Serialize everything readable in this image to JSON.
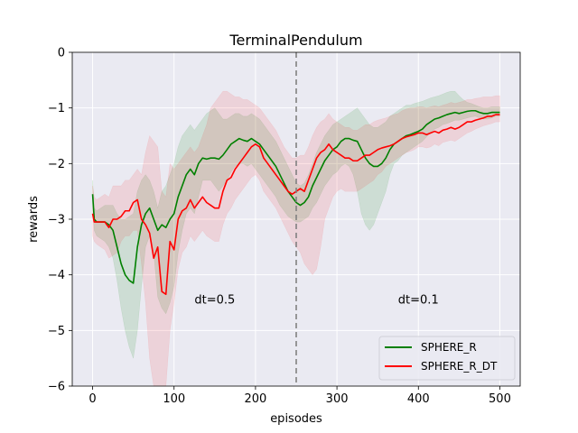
{
  "chart_data": {
    "type": "line",
    "title": "TerminalPendulum",
    "xlabel": "episodes",
    "ylabel": "rewards",
    "xlim": [
      -25,
      525
    ],
    "ylim": [
      -6,
      0
    ],
    "xticks": [
      0,
      100,
      200,
      300,
      400,
      500
    ],
    "yticks": [
      0,
      -1,
      -2,
      -3,
      -4,
      -5,
      -6
    ],
    "grid": true,
    "legend_position": "lower-right",
    "vline": {
      "x": 250,
      "color": "#808080",
      "style": "dashed"
    },
    "annotations": [
      {
        "text": "dt=0.5",
        "x": 150,
        "y": -4.45
      },
      {
        "text": "dt=0.1",
        "x": 400,
        "y": -4.45
      }
    ],
    "series": [
      {
        "name": "SPHERE_R",
        "color": "#008000",
        "band_color": "rgba(0,128,0,0.12)",
        "x": [
          0,
          2,
          5,
          10,
          15,
          20,
          25,
          30,
          35,
          40,
          45,
          50,
          55,
          60,
          65,
          70,
          75,
          80,
          85,
          90,
          95,
          100,
          105,
          110,
          115,
          120,
          125,
          130,
          135,
          140,
          145,
          150,
          155,
          160,
          165,
          170,
          175,
          180,
          185,
          190,
          195,
          200,
          205,
          210,
          215,
          220,
          225,
          230,
          235,
          240,
          245,
          250,
          255,
          260,
          265,
          270,
          275,
          280,
          285,
          290,
          295,
          300,
          305,
          310,
          315,
          320,
          325,
          330,
          335,
          340,
          345,
          350,
          355,
          360,
          365,
          370,
          375,
          380,
          385,
          390,
          395,
          400,
          405,
          410,
          415,
          420,
          425,
          430,
          435,
          440,
          445,
          450,
          455,
          460,
          465,
          470,
          475,
          480,
          485,
          490,
          495,
          500
        ],
        "y": [
          -2.55,
          -3.0,
          -3.05,
          -3.05,
          -3.05,
          -3.1,
          -3.2,
          -3.5,
          -3.8,
          -4.0,
          -4.1,
          -4.15,
          -3.5,
          -3.1,
          -2.9,
          -2.8,
          -3.0,
          -3.2,
          -3.1,
          -3.15,
          -3.0,
          -2.9,
          -2.6,
          -2.4,
          -2.2,
          -2.1,
          -2.2,
          -2.0,
          -1.9,
          -1.92,
          -1.9,
          -1.9,
          -1.92,
          -1.85,
          -1.75,
          -1.65,
          -1.6,
          -1.55,
          -1.58,
          -1.6,
          -1.55,
          -1.6,
          -1.65,
          -1.75,
          -1.85,
          -1.95,
          -2.05,
          -2.2,
          -2.35,
          -2.5,
          -2.6,
          -2.7,
          -2.75,
          -2.7,
          -2.6,
          -2.4,
          -2.25,
          -2.1,
          -1.95,
          -1.85,
          -1.75,
          -1.7,
          -1.6,
          -1.55,
          -1.55,
          -1.58,
          -1.6,
          -1.75,
          -1.9,
          -2.0,
          -2.05,
          -2.05,
          -2.0,
          -1.9,
          -1.75,
          -1.65,
          -1.6,
          -1.55,
          -1.5,
          -1.48,
          -1.45,
          -1.42,
          -1.38,
          -1.3,
          -1.25,
          -1.2,
          -1.18,
          -1.15,
          -1.12,
          -1.1,
          -1.08,
          -1.1,
          -1.08,
          -1.06,
          -1.05,
          -1.05,
          -1.08,
          -1.1,
          -1.1,
          -1.08,
          -1.08,
          -1.08
        ],
        "lower": [
          -2.8,
          -3.2,
          -3.3,
          -3.35,
          -3.4,
          -3.5,
          -3.7,
          -4.1,
          -4.6,
          -5.0,
          -5.3,
          -5.5,
          -5.0,
          -4.2,
          -3.5,
          -3.3,
          -3.6,
          -4.4,
          -4.6,
          -4.7,
          -4.5,
          -4.2,
          -3.6,
          -3.2,
          -2.9,
          -2.8,
          -2.9,
          -2.6,
          -2.3,
          -2.3,
          -2.3,
          -2.4,
          -2.5,
          -2.4,
          -2.3,
          -2.15,
          -2.05,
          -2.0,
          -2.0,
          -2.05,
          -2.0,
          -2.1,
          -2.2,
          -2.3,
          -2.4,
          -2.5,
          -2.6,
          -2.75,
          -2.85,
          -2.95,
          -3.0,
          -3.05,
          -3.05,
          -3.0,
          -2.95,
          -2.8,
          -2.7,
          -2.55,
          -2.4,
          -2.3,
          -2.2,
          -2.15,
          -2.05,
          -2.0,
          -2.05,
          -2.2,
          -2.5,
          -2.9,
          -3.1,
          -3.2,
          -3.1,
          -2.9,
          -2.7,
          -2.5,
          -2.2,
          -2.0,
          -1.95,
          -1.85,
          -1.8,
          -1.75,
          -1.7,
          -1.65,
          -1.6,
          -1.52,
          -1.45,
          -1.38,
          -1.35,
          -1.3,
          -1.28,
          -1.25,
          -1.22,
          -1.22,
          -1.2,
          -1.18,
          -1.16,
          -1.15,
          -1.18,
          -1.2,
          -1.2,
          -1.18,
          -1.15,
          -1.15
        ],
        "upper": [
          -2.3,
          -2.8,
          -2.85,
          -2.8,
          -2.75,
          -2.75,
          -2.75,
          -2.9,
          -3.0,
          -3.0,
          -2.95,
          -2.9,
          -2.5,
          -2.3,
          -2.2,
          -2.3,
          -2.5,
          -2.8,
          -2.5,
          -2.4,
          -2.2,
          -2.0,
          -1.7,
          -1.5,
          -1.4,
          -1.3,
          -1.4,
          -1.3,
          -1.2,
          -1.1,
          -1.05,
          -1.0,
          -1.1,
          -1.2,
          -1.2,
          -1.15,
          -1.1,
          -1.1,
          -1.15,
          -1.15,
          -1.1,
          -1.15,
          -1.2,
          -1.3,
          -1.4,
          -1.5,
          -1.6,
          -1.75,
          -1.9,
          -2.05,
          -2.2,
          -2.35,
          -2.4,
          -2.35,
          -2.2,
          -2.0,
          -1.8,
          -1.65,
          -1.5,
          -1.4,
          -1.3,
          -1.25,
          -1.2,
          -1.15,
          -1.1,
          -1.05,
          -1.0,
          -1.1,
          -1.2,
          -1.3,
          -1.35,
          -1.35,
          -1.3,
          -1.25,
          -1.15,
          -1.1,
          -1.05,
          -1.0,
          -0.95,
          -0.95,
          -0.92,
          -0.9,
          -0.88,
          -0.85,
          -0.82,
          -0.8,
          -0.78,
          -0.75,
          -0.72,
          -0.7,
          -0.7,
          -0.78,
          -0.85,
          -0.9,
          -0.92,
          -0.95,
          -0.98,
          -1.0,
          -1.0,
          -0.98,
          -0.98,
          -0.98
        ]
      },
      {
        "name": "SPHERE_R_DT",
        "color": "#ff0000",
        "band_color": "rgba(255,0,0,0.10)",
        "x": [
          0,
          2,
          5,
          10,
          15,
          20,
          25,
          30,
          35,
          40,
          45,
          50,
          55,
          60,
          65,
          70,
          75,
          80,
          85,
          90,
          95,
          100,
          105,
          110,
          115,
          120,
          125,
          130,
          135,
          140,
          145,
          150,
          155,
          160,
          165,
          170,
          175,
          180,
          185,
          190,
          195,
          200,
          205,
          210,
          215,
          220,
          225,
          230,
          235,
          240,
          245,
          250,
          255,
          260,
          265,
          270,
          275,
          280,
          285,
          290,
          295,
          300,
          305,
          310,
          315,
          320,
          325,
          330,
          335,
          340,
          345,
          350,
          355,
          360,
          365,
          370,
          375,
          380,
          385,
          390,
          395,
          400,
          405,
          410,
          415,
          420,
          425,
          430,
          435,
          440,
          445,
          450,
          455,
          460,
          465,
          470,
          475,
          480,
          485,
          490,
          495,
          500
        ],
        "y": [
          -2.9,
          -3.05,
          -3.05,
          -3.05,
          -3.05,
          -3.15,
          -3.0,
          -3.0,
          -2.95,
          -2.85,
          -2.85,
          -2.7,
          -2.65,
          -3.0,
          -3.1,
          -3.25,
          -3.7,
          -3.5,
          -4.3,
          -4.35,
          -3.4,
          -3.55,
          -3.0,
          -2.85,
          -2.8,
          -2.65,
          -2.8,
          -2.7,
          -2.6,
          -2.7,
          -2.75,
          -2.8,
          -2.8,
          -2.5,
          -2.3,
          -2.25,
          -2.1,
          -2.0,
          -1.9,
          -1.8,
          -1.7,
          -1.65,
          -1.7,
          -1.9,
          -2.0,
          -2.1,
          -2.2,
          -2.3,
          -2.4,
          -2.5,
          -2.55,
          -2.5,
          -2.45,
          -2.5,
          -2.3,
          -2.1,
          -1.9,
          -1.8,
          -1.75,
          -1.65,
          -1.75,
          -1.8,
          -1.85,
          -1.9,
          -1.9,
          -1.95,
          -1.95,
          -1.9,
          -1.85,
          -1.85,
          -1.8,
          -1.75,
          -1.72,
          -1.7,
          -1.68,
          -1.65,
          -1.6,
          -1.55,
          -1.52,
          -1.5,
          -1.48,
          -1.45,
          -1.45,
          -1.48,
          -1.45,
          -1.42,
          -1.45,
          -1.4,
          -1.38,
          -1.35,
          -1.38,
          -1.35,
          -1.3,
          -1.25,
          -1.25,
          -1.22,
          -1.2,
          -1.18,
          -1.15,
          -1.15,
          -1.12,
          -1.12
        ],
        "lower": [
          -3.3,
          -3.4,
          -3.45,
          -3.5,
          -3.55,
          -3.7,
          -3.65,
          -3.6,
          -3.4,
          -3.3,
          -3.3,
          -3.2,
          -3.2,
          -3.8,
          -4.5,
          -5.5,
          -6.0,
          -6.0,
          -6.0,
          -6.0,
          -5.0,
          -4.5,
          -3.9,
          -3.6,
          -3.5,
          -3.3,
          -3.4,
          -3.3,
          -3.2,
          -3.3,
          -3.35,
          -3.4,
          -3.4,
          -3.1,
          -2.9,
          -2.8,
          -2.65,
          -2.55,
          -2.45,
          -2.35,
          -2.25,
          -2.2,
          -2.3,
          -2.5,
          -2.6,
          -2.7,
          -2.8,
          -2.95,
          -3.1,
          -3.25,
          -3.4,
          -3.5,
          -3.6,
          -3.8,
          -3.9,
          -4.0,
          -3.9,
          -3.5,
          -3.0,
          -2.8,
          -2.6,
          -2.5,
          -2.45,
          -2.5,
          -2.5,
          -2.5,
          -2.5,
          -2.45,
          -2.4,
          -2.35,
          -2.3,
          -2.2,
          -2.15,
          -2.05,
          -2.0,
          -1.95,
          -1.9,
          -1.85,
          -1.8,
          -1.78,
          -1.75,
          -1.7,
          -1.7,
          -1.72,
          -1.7,
          -1.65,
          -1.68,
          -1.62,
          -1.6,
          -1.58,
          -1.6,
          -1.55,
          -1.5,
          -1.45,
          -1.42,
          -1.38,
          -1.35,
          -1.32,
          -1.3,
          -1.28,
          -1.25,
          -1.25
        ],
        "upper": [
          -2.4,
          -2.6,
          -2.65,
          -2.6,
          -2.55,
          -2.6,
          -2.4,
          -2.4,
          -2.4,
          -2.3,
          -2.3,
          -2.2,
          -2.1,
          -2.2,
          -1.8,
          -1.5,
          -1.6,
          -1.7,
          -2.5,
          -2.6,
          -2.0,
          -2.1,
          -2.0,
          -1.9,
          -1.8,
          -1.7,
          -1.8,
          -1.7,
          -1.5,
          -1.3,
          -1.0,
          -0.9,
          -0.8,
          -0.7,
          -0.7,
          -0.75,
          -0.8,
          -0.8,
          -0.85,
          -0.85,
          -0.9,
          -0.95,
          -1.0,
          -1.1,
          -1.2,
          -1.3,
          -1.4,
          -1.55,
          -1.7,
          -1.8,
          -1.9,
          -1.9,
          -1.85,
          -1.85,
          -1.7,
          -1.5,
          -1.35,
          -1.25,
          -1.2,
          -1.1,
          -1.2,
          -1.25,
          -1.3,
          -1.35,
          -1.35,
          -1.4,
          -1.4,
          -1.35,
          -1.3,
          -1.3,
          -1.25,
          -1.22,
          -1.2,
          -1.18,
          -1.15,
          -1.12,
          -1.1,
          -1.05,
          -1.02,
          -1.0,
          -1.0,
          -0.98,
          -0.98,
          -1.0,
          -0.98,
          -0.96,
          -0.98,
          -0.95,
          -0.93,
          -0.9,
          -0.92,
          -0.9,
          -0.88,
          -0.85,
          -0.85,
          -0.83,
          -0.82,
          -0.8,
          -0.8,
          -0.8,
          -0.78,
          -0.78
        ]
      }
    ]
  }
}
